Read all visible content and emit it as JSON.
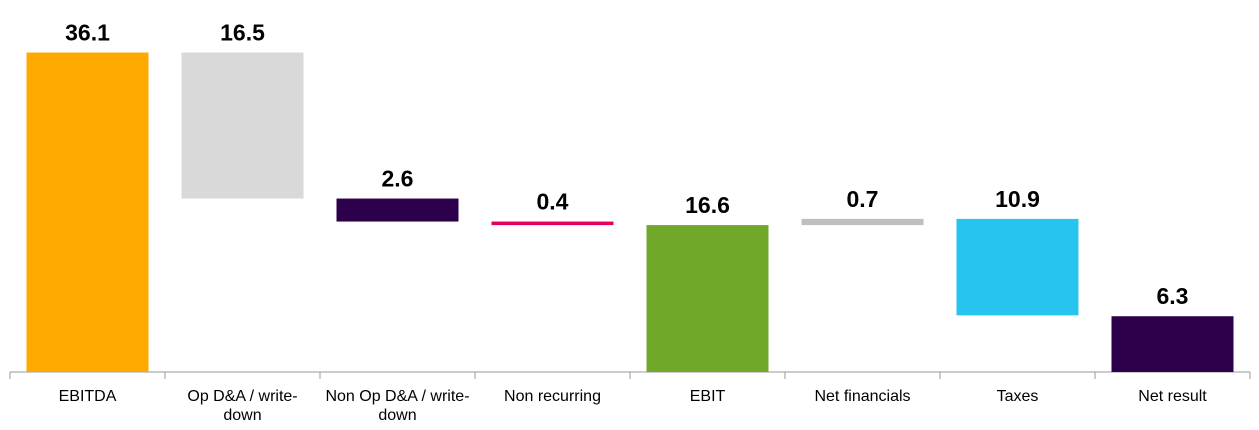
{
  "chart_data": {
    "type": "waterfall",
    "categories": [
      "EBITDA",
      "Op D&A / write-down",
      "Non Op D&A / write-down",
      "Non recurring",
      "EBIT",
      "Net financials",
      "Taxes",
      "Net result"
    ],
    "values": [
      36.1,
      16.5,
      2.6,
      0.4,
      16.6,
      0.7,
      10.9,
      6.3
    ],
    "kinds": [
      "total",
      "decrease",
      "decrease",
      "decrease",
      "total",
      "increase",
      "decrease",
      "total"
    ],
    "colors": [
      "#ffa800",
      "#d9d9d9",
      "#2d004b",
      "#e6005c",
      "#70a82c",
      "#bfbfbf",
      "#27c4f0",
      "#2d004b"
    ],
    "ylim": [
      0,
      40
    ]
  }
}
